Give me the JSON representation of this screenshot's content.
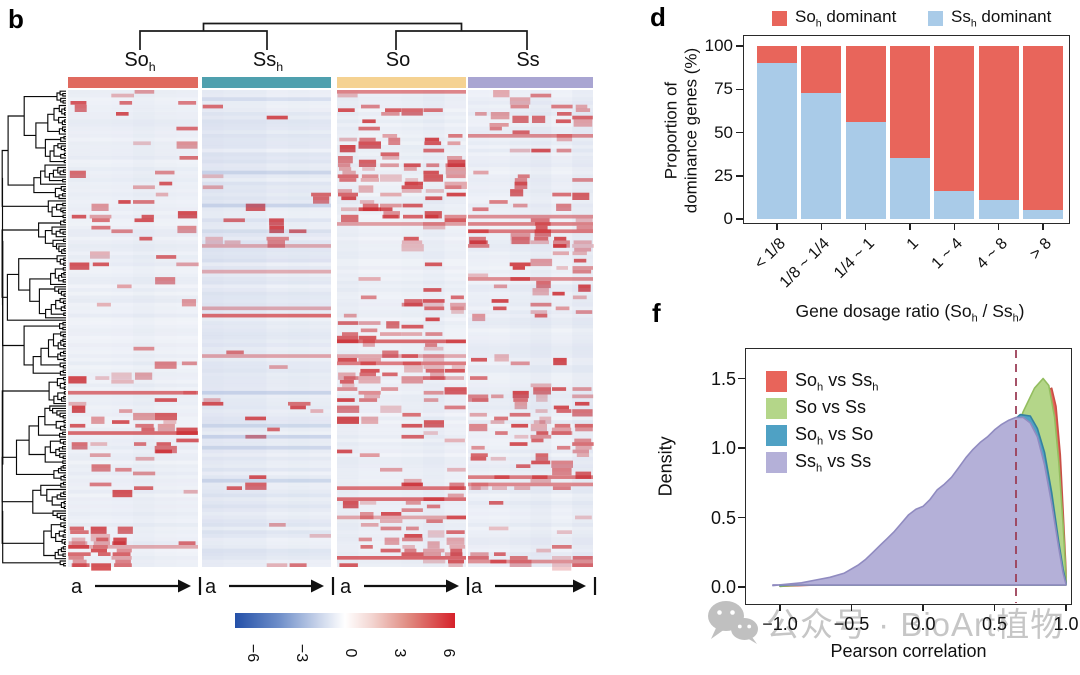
{
  "panel_b": {
    "label": "b",
    "groups": [
      {
        "base": "So",
        "sub": "h",
        "color": "#E06A5F"
      },
      {
        "base": "Ss",
        "sub": "h",
        "color": "#4FA0AE"
      },
      {
        "base": "So",
        "sub": "",
        "color": "#F5D292"
      },
      {
        "base": "Ss",
        "sub": "",
        "color": "#A9A5D2"
      }
    ],
    "row_axis_label": "a",
    "colorbar": {
      "min_color": "#2450A8",
      "mid_color": "#FFFFFF",
      "max_color": "#D6212A",
      "ticks": [
        "−6",
        "−3",
        "0",
        "3",
        "6"
      ]
    }
  },
  "panel_d": {
    "label": "d",
    "legend": [
      {
        "base": "So",
        "sub": "h",
        "rest": " dominant",
        "color": "#E8655B"
      },
      {
        "base": "Ss",
        "sub": "h",
        "rest": " dominant",
        "color": "#A9CBE8"
      }
    ],
    "ytitle": {
      "line1": "Proportion of",
      "line2": "dominance genes (%)"
    },
    "xtitle": {
      "pre": "Gene dosage ratio (So",
      "sub1": "h",
      "mid": " / Ss",
      "sub2": "h",
      "post": ")"
    }
  },
  "panel_f": {
    "label": "f",
    "legend": [
      {
        "a_base": "So",
        "a_sub": "h",
        "mid": " vs ",
        "b_base": "Ss",
        "b_sub": "h"
      },
      {
        "a_base": "So",
        "a_sub": "",
        "mid": " vs ",
        "b_base": "Ss",
        "b_sub": ""
      },
      {
        "a_base": "So",
        "a_sub": "h",
        "mid": " vs ",
        "b_base": "So",
        "b_sub": ""
      },
      {
        "a_base": "Ss",
        "a_sub": "h",
        "mid": " vs ",
        "b_base": "Ss",
        "b_sub": ""
      }
    ],
    "ytitle": "Density",
    "xtitle": "Pearson correlation"
  },
  "watermark": {
    "text": "公众号 · BioArt植物"
  },
  "chart_data": [
    {
      "id": "expression_heatmap_b",
      "type": "heatmap",
      "groups": [
        "Soh",
        "Ssh",
        "So",
        "Ss"
      ],
      "value_range": [
        -6,
        6
      ],
      "colorbar_ticks": [
        -6,
        -3,
        0,
        3,
        6
      ],
      "row_marker": "a",
      "palette": "blue-white-red"
    },
    {
      "id": "dominance_bars",
      "type": "bar",
      "stacked": true,
      "categories": [
        "< 1/8",
        "1/8 ~ 1/4",
        "1/4 ~ 1",
        "1",
        "1 ~ 4",
        "4 ~ 8",
        "> 8"
      ],
      "series": [
        {
          "name": "Ssh dominant",
          "color": "#A9CBE8",
          "values": [
            90,
            73,
            56,
            35,
            16,
            11,
            5
          ]
        },
        {
          "name": "Soh dominant",
          "color": "#E8655B",
          "values": [
            10,
            27,
            44,
            65,
            84,
            89,
            95
          ]
        }
      ],
      "ylabel": "Proportion of dominance genes (%)",
      "xlabel": "Gene dosage ratio (Soh / Ssh)",
      "ylim": [
        0,
        100
      ],
      "yticks": [
        0,
        25,
        50,
        75,
        100
      ]
    },
    {
      "id": "correlation_density",
      "type": "area",
      "xlabel": "Pearson correlation",
      "ylabel": "Density",
      "xlim": [
        -1.15,
        1.05
      ],
      "ylim": [
        0,
        1.72
      ],
      "xticks": [
        -1.0,
        -0.5,
        0.0,
        0.5,
        1.0
      ],
      "yticks": [
        0.0,
        0.5,
        1.0,
        1.5
      ],
      "vline": 0.65,
      "series": [
        {
          "name": "Soh vs Ssh",
          "color": "#E8645A",
          "stroke": "#C94F46",
          "points": [
            [
              -1.0,
              0.005
            ],
            [
              -0.6,
              0.02
            ],
            [
              -0.3,
              0.07
            ],
            [
              0.0,
              0.15
            ],
            [
              0.2,
              0.28
            ],
            [
              0.4,
              0.5
            ],
            [
              0.55,
              0.73
            ],
            [
              0.68,
              1.02
            ],
            [
              0.78,
              1.26
            ],
            [
              0.86,
              1.41
            ],
            [
              0.9,
              1.43
            ],
            [
              0.93,
              1.3
            ],
            [
              0.96,
              0.95
            ],
            [
              0.98,
              0.55
            ],
            [
              1.0,
              0.12
            ]
          ]
        },
        {
          "name": "So vs Ss",
          "color": "#B4D689",
          "stroke": "#93BD5F",
          "points": [
            [
              -1.0,
              0.005
            ],
            [
              -0.6,
              0.03
            ],
            [
              -0.3,
              0.09
            ],
            [
              0.0,
              0.19
            ],
            [
              0.2,
              0.36
            ],
            [
              0.35,
              0.52
            ],
            [
              0.5,
              0.78
            ],
            [
              0.6,
              1.0
            ],
            [
              0.7,
              1.26
            ],
            [
              0.78,
              1.43
            ],
            [
              0.84,
              1.5
            ],
            [
              0.88,
              1.45
            ],
            [
              0.92,
              1.22
            ],
            [
              0.95,
              0.9
            ],
            [
              0.98,
              0.45
            ],
            [
              1.0,
              0.08
            ]
          ]
        },
        {
          "name": "Soh vs So",
          "color": "#4FA1C4",
          "stroke": "#35819F",
          "points": [
            [
              -1.0,
              0.01
            ],
            [
              -0.7,
              0.03
            ],
            [
              -0.5,
              0.06
            ],
            [
              -0.3,
              0.14
            ],
            [
              -0.1,
              0.28
            ],
            [
              0.0,
              0.38
            ],
            [
              0.1,
              0.5
            ],
            [
              0.2,
              0.62
            ],
            [
              0.3,
              0.76
            ],
            [
              0.4,
              0.92
            ],
            [
              0.5,
              1.06
            ],
            [
              0.6,
              1.17
            ],
            [
              0.68,
              1.24
            ],
            [
              0.75,
              1.23
            ],
            [
              0.8,
              1.14
            ],
            [
              0.85,
              0.97
            ],
            [
              0.9,
              0.68
            ],
            [
              0.95,
              0.32
            ],
            [
              0.98,
              0.13
            ],
            [
              1.0,
              0.03
            ]
          ]
        },
        {
          "name": "Ssh vs Ss",
          "color": "#B4B0D8",
          "stroke": "#908BC0",
          "points": [
            [
              -1.05,
              0.01
            ],
            [
              -0.95,
              0.02
            ],
            [
              -0.85,
              0.03
            ],
            [
              -0.75,
              0.05
            ],
            [
              -0.65,
              0.07
            ],
            [
              -0.55,
              0.1
            ],
            [
              -0.5,
              0.13
            ],
            [
              -0.45,
              0.16
            ],
            [
              -0.4,
              0.2
            ],
            [
              -0.35,
              0.25
            ],
            [
              -0.3,
              0.3
            ],
            [
              -0.25,
              0.35
            ],
            [
              -0.2,
              0.4
            ],
            [
              -0.15,
              0.46
            ],
            [
              -0.1,
              0.52
            ],
            [
              -0.05,
              0.56
            ],
            [
              0.0,
              0.58
            ],
            [
              0.05,
              0.63
            ],
            [
              0.1,
              0.7
            ],
            [
              0.15,
              0.74
            ],
            [
              0.2,
              0.79
            ],
            [
              0.25,
              0.86
            ],
            [
              0.3,
              0.93
            ],
            [
              0.35,
              0.99
            ],
            [
              0.4,
              1.04
            ],
            [
              0.45,
              1.08
            ],
            [
              0.5,
              1.13
            ],
            [
              0.55,
              1.17
            ],
            [
              0.6,
              1.2
            ],
            [
              0.65,
              1.22
            ],
            [
              0.7,
              1.22
            ],
            [
              0.75,
              1.18
            ],
            [
              0.8,
              1.08
            ],
            [
              0.85,
              0.88
            ],
            [
              0.9,
              0.6
            ],
            [
              0.95,
              0.28
            ],
            [
              0.98,
              0.1
            ],
            [
              1.0,
              0.02
            ]
          ]
        }
      ]
    }
  ]
}
